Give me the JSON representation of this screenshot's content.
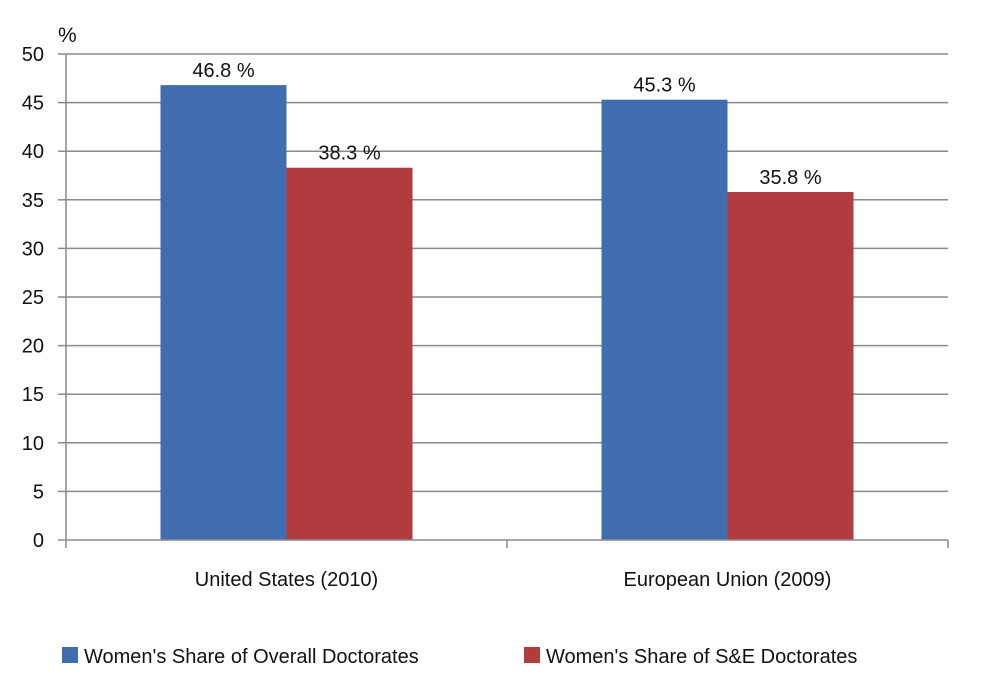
{
  "chart_data": {
    "type": "bar",
    "title": "",
    "ylabel": "%",
    "xlabel": "",
    "ylim": [
      0,
      50
    ],
    "yticks": [
      0,
      5,
      10,
      15,
      20,
      25,
      30,
      35,
      40,
      45,
      50
    ],
    "grid": true,
    "legend_position": "bottom",
    "categories": [
      "United States (2010)",
      "European Union (2009)"
    ],
    "series": [
      {
        "name": "Women's Share of Overall Doctorates",
        "color": "#3F6DB0",
        "values": [
          46.8,
          45.3
        ],
        "labels": [
          "46.8 %",
          "45.3 %"
        ]
      },
      {
        "name": "Women's Share of S&E Doctorates",
        "color": "#B23B3E",
        "values": [
          38.3,
          35.8
        ],
        "labels": [
          "38.3 %",
          "35.8 %"
        ]
      }
    ]
  }
}
